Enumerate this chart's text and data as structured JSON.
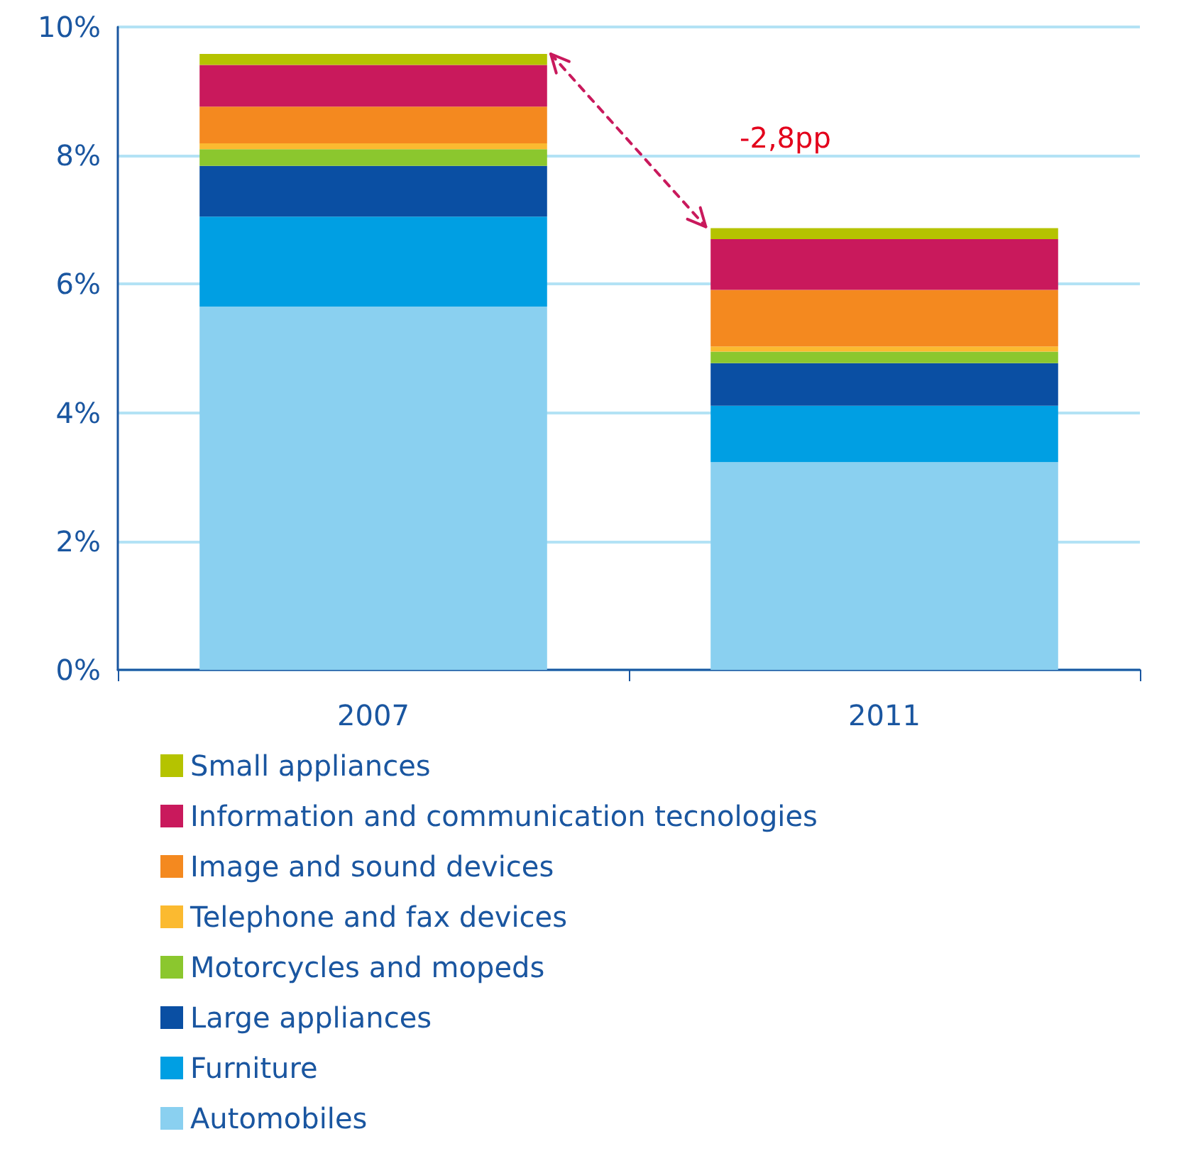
{
  "chart_data": {
    "type": "bar",
    "stacked": true,
    "categories": [
      "2007",
      "2011"
    ],
    "series": [
      {
        "name": "Automobiles",
        "color": "#8ad0f0",
        "values": [
          5.65,
          3.23
        ]
      },
      {
        "name": "Furniture",
        "color": "#009fe3",
        "values": [
          1.4,
          0.88
        ]
      },
      {
        "name": "Large appliances",
        "color": "#0a4fa3",
        "values": [
          0.79,
          0.66
        ]
      },
      {
        "name": "Motorcycles and mopeds",
        "color": "#8bc72e",
        "values": [
          0.26,
          0.18
        ]
      },
      {
        "name": "Telephone and fax devices",
        "color": "#fbba30",
        "values": [
          0.09,
          0.08
        ]
      },
      {
        "name": "Image and sound devices",
        "color": "#f4891f",
        "values": [
          0.57,
          0.88
        ]
      },
      {
        "name": "Information and communication tecnologies",
        "color": "#c9195c",
        "values": [
          0.65,
          0.79
        ]
      },
      {
        "name": "Small appliances",
        "color": "#b5c300",
        "values": [
          0.17,
          0.17
        ]
      }
    ],
    "ylim": [
      0,
      10
    ],
    "yticks": [
      {
        "value": 0,
        "label": "0%"
      },
      {
        "value": 2,
        "label": "2%"
      },
      {
        "value": 4,
        "label": "4%"
      },
      {
        "value": 6,
        "label": "6%"
      },
      {
        "value": 8,
        "label": "8%"
      },
      {
        "value": 10,
        "label": "10%"
      }
    ],
    "grid": "y",
    "legend": "bottom",
    "annotations": [
      "-2,8pp"
    ]
  }
}
